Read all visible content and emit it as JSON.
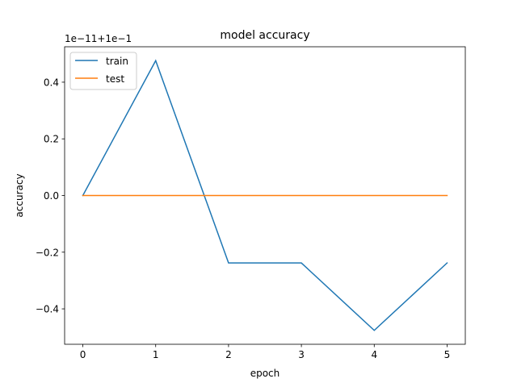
{
  "chart_data": {
    "type": "line",
    "title": "model accuracy",
    "xlabel": "epoch",
    "ylabel": "accuracy",
    "offset_text": "1e−11+1e−1",
    "x": [
      0,
      1,
      2,
      3,
      4,
      5
    ],
    "x_ticks": [
      0,
      1,
      2,
      3,
      4,
      5
    ],
    "x_tick_labels": [
      "0",
      "1",
      "2",
      "3",
      "4",
      "5"
    ],
    "xlim": [
      -0.25,
      5.25
    ],
    "y_ticks": [
      -0.4,
      -0.2,
      0.0,
      0.2,
      0.4
    ],
    "y_tick_labels": [
      "−0.4",
      "−0.2",
      "0.0",
      "0.2",
      "0.4"
    ],
    "ylim": [
      -0.525,
      0.525
    ],
    "grid": false,
    "legend_position": "upper left",
    "series": [
      {
        "name": "train",
        "color": "#1f77b4",
        "values": [
          0.0,
          0.476,
          -0.238,
          -0.238,
          -0.476,
          -0.238
        ]
      },
      {
        "name": "test",
        "color": "#ff7f0e",
        "values": [
          0.0,
          0.0,
          0.0,
          0.0,
          0.0,
          0.0
        ]
      }
    ]
  }
}
